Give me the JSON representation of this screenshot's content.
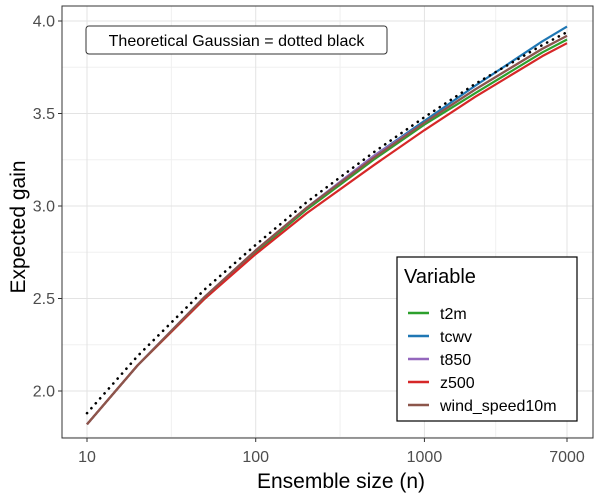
{
  "chart_data": {
    "type": "line",
    "xlabel": "Ensemble size (n)",
    "ylabel": "Expected gain",
    "x_scale": "log",
    "xlim": [
      10,
      7000
    ],
    "ylim": [
      1.8,
      4.0
    ],
    "x_ticks": [
      {
        "value": 10,
        "label": "10"
      },
      {
        "value": 100,
        "label": "100"
      },
      {
        "value": 1000,
        "label": "1000"
      },
      {
        "value": 7000,
        "label": "7000"
      }
    ],
    "y_ticks": [
      {
        "value": 2.0,
        "label": "2.0"
      },
      {
        "value": 2.5,
        "label": "2.5"
      },
      {
        "value": 3.0,
        "label": "3.0"
      },
      {
        "value": 3.5,
        "label": "3.5"
      },
      {
        "value": 4.0,
        "label": "4.0"
      }
    ],
    "grid": true,
    "annotation": "Theoretical Gaussian = dotted black",
    "legend": {
      "title": "Variable",
      "position": "bottom-right"
    },
    "x": [
      10,
      20,
      50,
      100,
      200,
      500,
      1000,
      2000,
      5000,
      7000
    ],
    "reference": {
      "style": "dotted",
      "color": "#000000",
      "values": [
        1.88,
        2.19,
        2.55,
        2.79,
        3.02,
        3.29,
        3.48,
        3.66,
        3.87,
        3.94
      ]
    },
    "series": [
      {
        "name": "t2m",
        "color": "#2CA02C",
        "values": [
          1.82,
          2.14,
          2.5,
          2.75,
          2.98,
          3.25,
          3.44,
          3.61,
          3.83,
          3.9
        ]
      },
      {
        "name": "tcwv",
        "color": "#1F77B4",
        "values": [
          1.82,
          2.14,
          2.51,
          2.76,
          2.99,
          3.27,
          3.46,
          3.65,
          3.89,
          3.97
        ]
      },
      {
        "name": "t850",
        "color": "#9467BD",
        "values": [
          1.82,
          2.14,
          2.51,
          2.76,
          2.99,
          3.27,
          3.45,
          3.63,
          3.85,
          3.92
        ]
      },
      {
        "name": "z500",
        "color": "#D62728",
        "values": [
          1.82,
          2.14,
          2.5,
          2.74,
          2.96,
          3.22,
          3.41,
          3.59,
          3.81,
          3.88
        ]
      },
      {
        "name": "wind_speed10m",
        "color": "#8C564B",
        "values": [
          1.82,
          2.14,
          2.51,
          2.76,
          2.99,
          3.26,
          3.45,
          3.63,
          3.85,
          3.92
        ]
      }
    ]
  }
}
